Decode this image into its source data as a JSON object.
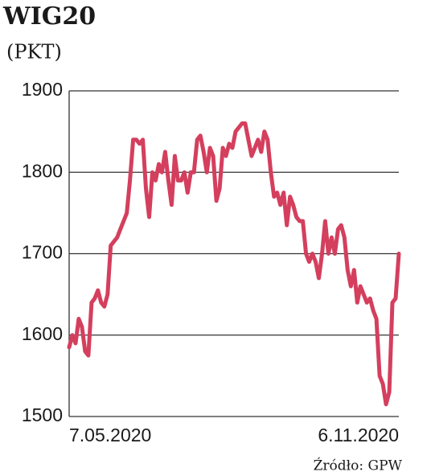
{
  "chart_data": {
    "type": "line",
    "title": "WIG20",
    "subtitle": "(PKT)",
    "source": "Źródło: GPW",
    "categories": [
      "7.05.2020",
      null,
      null,
      null,
      null,
      null,
      null,
      null,
      null,
      null,
      null,
      null,
      null,
      null,
      null,
      null,
      null,
      null,
      null,
      null,
      null,
      null,
      null,
      null,
      null,
      null,
      null,
      null,
      null,
      null,
      null,
      null,
      null,
      null,
      null,
      null,
      null,
      null,
      null,
      null,
      null,
      null,
      null,
      null,
      null,
      null,
      null,
      null,
      null,
      null,
      null,
      null,
      null,
      null,
      null,
      null,
      null,
      null,
      null,
      null,
      null,
      null,
      null,
      null,
      null,
      null,
      null,
      null,
      null,
      null,
      null,
      null,
      null,
      null,
      null,
      null,
      null,
      null,
      null,
      null,
      null,
      null,
      null,
      null,
      null,
      null,
      null,
      null,
      null,
      null,
      null,
      null,
      null,
      null,
      null,
      null,
      null,
      null,
      null,
      null,
      null,
      null,
      null,
      "6.11.2020"
    ],
    "values": [
      1585,
      1600,
      1590,
      1620,
      1610,
      1580,
      1575,
      1640,
      1645,
      1655,
      1640,
      1635,
      1650,
      1710,
      1715,
      1720,
      1730,
      1740,
      1750,
      1790,
      1840,
      1840,
      1835,
      1840,
      1780,
      1745,
      1800,
      1790,
      1810,
      1800,
      1825,
      1790,
      1760,
      1820,
      1790,
      1790,
      1800,
      1775,
      1800,
      1800,
      1840,
      1845,
      1825,
      1800,
      1830,
      1820,
      1765,
      1780,
      1830,
      1820,
      1835,
      1830,
      1850,
      1855,
      1860,
      1860,
      1840,
      1820,
      1830,
      1840,
      1825,
      1850,
      1840,
      1800,
      1770,
      1775,
      1760,
      1775,
      1735,
      1770,
      1760,
      1745,
      1740,
      1740,
      1700,
      1690,
      1700,
      1690,
      1670,
      1700,
      1740,
      1700,
      1720,
      1700,
      1730,
      1735,
      1720,
      1680,
      1660,
      1680,
      1640,
      1660,
      1650,
      1640,
      1645,
      1630,
      1620,
      1550,
      1540,
      1515,
      1530,
      1640,
      1645,
      1700
    ],
    "color": "#d43f5e",
    "ylim": [
      1500,
      1900
    ],
    "yticks": [
      1500,
      1600,
      1700,
      1800,
      1900
    ],
    "grid": true
  }
}
